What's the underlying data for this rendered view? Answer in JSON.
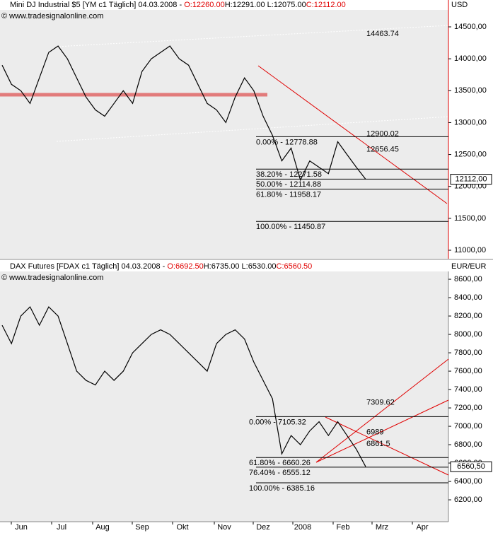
{
  "chart_data": [
    {
      "type": "line",
      "header": {
        "name": "Mini DJ Industrial $5 [YM c1  Täglich] 04.03.2008 - ",
        "open": "O:12260.00",
        "hl": "H:12291.00 L:12075.00",
        "close": "C:12112.00"
      },
      "source": "© www.tradesignalonline.com",
      "currency": "USD",
      "color": "#000000",
      "values": [
        13900,
        13600,
        13500,
        13300,
        13700,
        14100,
        14200,
        14000,
        13700,
        13400,
        13200,
        13100,
        13300,
        13500,
        13300,
        13800,
        14000,
        14100,
        14200,
        14000,
        13900,
        13600,
        13300,
        13200,
        13000,
        13400,
        13700,
        13500,
        13100,
        12800,
        12400,
        12600,
        12100,
        12400,
        12300,
        12200,
        12700,
        12500,
        12300,
        12112
      ],
      "ylim": [
        10867,
        14766
      ],
      "yticks": [
        {
          "value": 11000,
          "label": "11000,00"
        },
        {
          "value": 11500,
          "label": "11500,00"
        },
        {
          "value": 12000,
          "label": "12000,00"
        },
        {
          "value": 12500,
          "label": "12500,00"
        },
        {
          "value": 13000,
          "label": "13000,00"
        },
        {
          "value": 13500,
          "label": "13500,00"
        },
        {
          "value": 14000,
          "label": "14000,00"
        },
        {
          "value": 14500,
          "label": "14500,00"
        }
      ],
      "levels": [
        {
          "value": 12778.88,
          "label": "0.00% - 12778.88"
        },
        {
          "value": 12271.58,
          "label": "38.20% - 12271.58"
        },
        {
          "value": 12114.88,
          "label": "50.00% - 12114.88"
        },
        {
          "value": 11958.17,
          "label": "61.80% - 11958.17"
        },
        {
          "value": 11450.87,
          "label": "100.00% - 11450.87"
        }
      ],
      "annotations": [
        {
          "value": 14463.74,
          "color": "#ffffff"
        },
        {
          "value": 12900.02,
          "color": "#ffffff"
        },
        {
          "value": 12656.45,
          "color": "#e00000"
        }
      ],
      "last": {
        "value": 12112,
        "label": "12112,00"
      }
    },
    {
      "type": "line",
      "header": {
        "name": "DAX Futures [FDAX c1  Täglich] 04.03.2008 - ",
        "open": "O:6692.50",
        "hl": "H:6735.00 L:6530.00",
        "close": "C:6560.50"
      },
      "source": "© www.tradesignalonline.com",
      "currency": "EUR/EUR",
      "color": "#000000",
      "values": [
        8100,
        7900,
        8200,
        8300,
        8100,
        8300,
        8200,
        7900,
        7600,
        7500,
        7450,
        7600,
        7500,
        7600,
        7800,
        7900,
        8000,
        8050,
        8000,
        7900,
        7800,
        7700,
        7600,
        7900,
        8000,
        8050,
        7950,
        7700,
        7500,
        7300,
        6700,
        6900,
        6800,
        6950,
        7050,
        6900,
        7050,
        6900,
        6750,
        6560.5
      ],
      "ylim": [
        5962,
        8685
      ],
      "yticks": [
        {
          "value": 6200,
          "label": "6200,00"
        },
        {
          "value": 6400,
          "label": "6400,00"
        },
        {
          "value": 6600,
          "label": "6600,00"
        },
        {
          "value": 6800,
          "label": "6800,00"
        },
        {
          "value": 7000,
          "label": "7000,00"
        },
        {
          "value": 7200,
          "label": "7200,00"
        },
        {
          "value": 7400,
          "label": "7400,00"
        },
        {
          "value": 7600,
          "label": "7600,00"
        },
        {
          "value": 7800,
          "label": "7800,00"
        },
        {
          "value": 8000,
          "label": "8000,00"
        },
        {
          "value": 8200,
          "label": "8200,00"
        },
        {
          "value": 8400,
          "label": "8400,00"
        },
        {
          "value": 8600,
          "label": "8600,00"
        }
      ],
      "levels": [
        {
          "value": 7105.32,
          "label": "0.00% - 7105.32"
        },
        {
          "value": 6660.26,
          "label": "61.80% - 6660.26"
        },
        {
          "value": 6555.12,
          "label": "76.40% - 6555.12"
        },
        {
          "value": 6385.16,
          "label": "100.00% - 6385.16"
        }
      ],
      "annotations": [
        {
          "value": 7309.62,
          "color": "#e00000"
        },
        {
          "value": 6989,
          "color": "#e00000"
        },
        {
          "value": 6861.5,
          "color": "#e00000"
        }
      ],
      "last": {
        "value": 6560.5,
        "label": "6560,50"
      },
      "x_labels": [
        "Jun",
        "Jul",
        "Aug",
        "Sep",
        "Okt",
        "Nov",
        "Dez",
        "2008",
        "Feb",
        "Mrz",
        "Apr"
      ]
    }
  ]
}
